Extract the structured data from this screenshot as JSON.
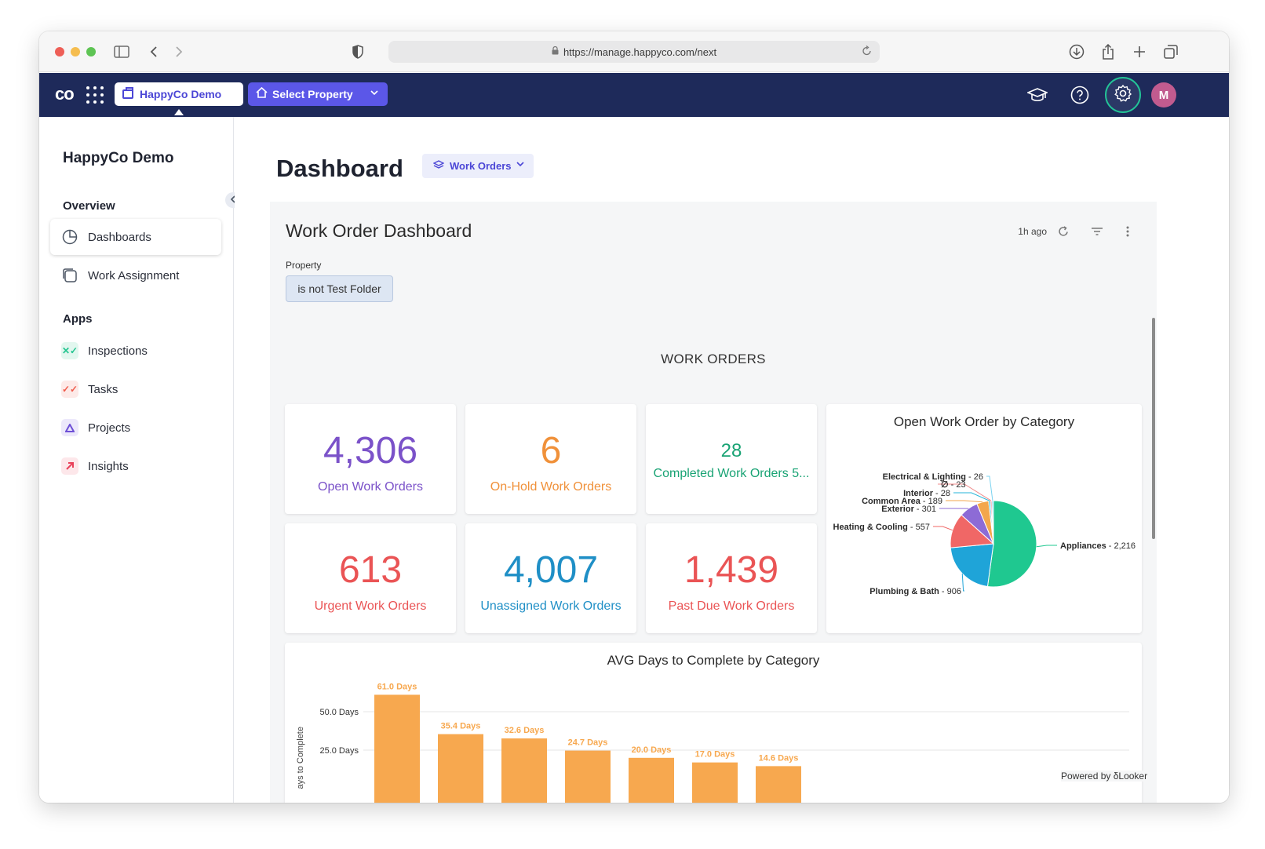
{
  "browser": {
    "url": "https://manage.happyco.com/next"
  },
  "header": {
    "logo": "co",
    "org_button": "HappyCo Demo",
    "property_button": "Select Property",
    "avatar_initial": "M",
    "colors": {
      "navy": "#1e2a5a",
      "accent": "#5b57e8",
      "gear_ring": "#23c497"
    }
  },
  "sidebar": {
    "org_name": "HappyCo Demo",
    "overview_label": "Overview",
    "apps_label": "Apps",
    "overview_items": [
      {
        "label": "Dashboards",
        "icon": "pie-chart-icon",
        "active": true
      },
      {
        "label": "Work Assignment",
        "icon": "work-assignment-icon",
        "active": false
      }
    ],
    "app_items": [
      {
        "label": "Inspections",
        "icon": "inspections-icon",
        "color": "#22c48f"
      },
      {
        "label": "Tasks",
        "icon": "tasks-icon",
        "color": "#f05a4a"
      },
      {
        "label": "Projects",
        "icon": "projects-icon",
        "color": "#6d4fd6"
      },
      {
        "label": "Insights",
        "icon": "insights-icon",
        "color": "#e9415a"
      }
    ]
  },
  "main": {
    "page_title": "Dashboard",
    "dropdown_label": "Work Orders"
  },
  "looker": {
    "title": "Work Order Dashboard",
    "updated": "1h ago",
    "filter_label": "Property",
    "filter_value": "is not Test Folder",
    "section_heading": "WORK ORDERS",
    "powered_by": "Powered by",
    "powered_brand": "Looker",
    "tiles": [
      {
        "value": "4,306",
        "label": "Open Work Orders",
        "color": "#7b52c9"
      },
      {
        "value": "6",
        "label": "On-Hold Work Orders",
        "color": "#f0913a"
      },
      {
        "value": "28",
        "label": "Completed Work Orders 5...",
        "color": "#19a374"
      },
      {
        "value": "613",
        "label": "Urgent Work Orders",
        "color": "#ea5455"
      },
      {
        "value": "4,007",
        "label": "Unassigned Work Orders",
        "color": "#1f8fc6"
      },
      {
        "value": "1,439",
        "label": "Past Due Work Orders",
        "color": "#ea5455"
      }
    ]
  },
  "chart_data": [
    {
      "type": "pie",
      "title": "Open Work Order by Category",
      "slices": [
        {
          "name": "Appliances",
          "value": 2216,
          "label": "Appliances",
          "display": " - 2,216",
          "color": "#1fc890"
        },
        {
          "name": "Plumbing & Bath",
          "value": 906,
          "label": "Plumbing & Bath",
          "display": " - 906",
          "color": "#1fa4d8"
        },
        {
          "name": "Heating & Cooling",
          "value": 557,
          "label": "Heating & Cooling",
          "display": " - 557",
          "color": "#f06766"
        },
        {
          "name": "Exterior",
          "value": 301,
          "label": "Exterior",
          "display": " - 301",
          "color": "#8d6bd6"
        },
        {
          "name": "Common Area",
          "value": 189,
          "label": "Common Area",
          "display": " - 189",
          "color": "#f3a64c"
        },
        {
          "name": "Interior",
          "value": 28,
          "label": "Interior",
          "display": " - 28",
          "color": "#26b6d8"
        },
        {
          "name": "",
          "value": 23,
          "label": "∅",
          "display": " - 23",
          "color": "#f08b8b"
        },
        {
          "name": "Electrical & Lighting",
          "value": 26,
          "label": "Electrical & Lighting",
          "display": " - 26",
          "color": "#7bd3f0"
        }
      ]
    },
    {
      "type": "bar",
      "title": "AVG Days to Complete by Category",
      "ylabel": "ays to Complete",
      "ytick_labels": [
        "25.0 Days",
        "50.0 Days"
      ],
      "yticks": [
        25,
        50
      ],
      "ylim": [
        0,
        75
      ],
      "values": [
        61.0,
        35.4,
        32.6,
        24.7,
        20.0,
        17.0,
        14.6
      ],
      "value_labels": [
        "61.0 Days",
        "35.4 Days",
        "32.6 Days",
        "24.7 Days",
        "20.0 Days",
        "17.0 Days",
        "14.6 Days"
      ],
      "color": "#f7a84f"
    }
  ]
}
